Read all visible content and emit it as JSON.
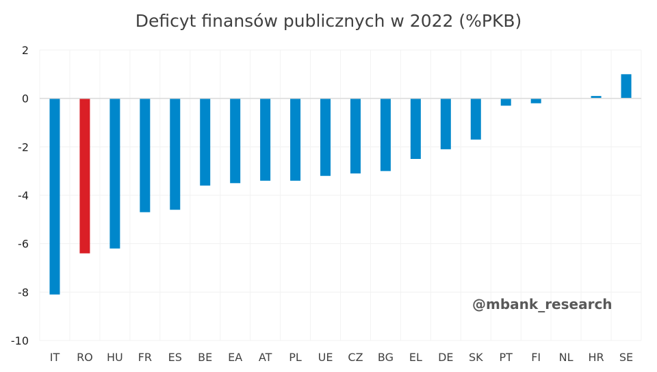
{
  "chart_data": {
    "type": "bar",
    "title": "Deficyt finansów publicznych w 2022 (%PKB)",
    "xlabel": "",
    "ylabel": "",
    "ylim": [
      -10,
      2
    ],
    "yticks": [
      2,
      0,
      -2,
      -4,
      -6,
      -8,
      -10
    ],
    "grid": true,
    "legend": "none",
    "categories": [
      "IT",
      "RO",
      "HU",
      "FR",
      "ES",
      "BE",
      "EA",
      "AT",
      "PL",
      "UE",
      "CZ",
      "BG",
      "EL",
      "DE",
      "SK",
      "PT",
      "FI",
      "NL",
      "HR",
      "SE"
    ],
    "values": [
      -8.1,
      -6.4,
      -6.2,
      -4.7,
      -4.6,
      -3.6,
      -3.5,
      -3.4,
      -3.4,
      -3.2,
      -3.1,
      -3.0,
      -2.5,
      -2.1,
      -1.7,
      -0.3,
      -0.2,
      0.0,
      0.1,
      1.0
    ],
    "highlight": {
      "category": "RO",
      "color": "#DA1F26"
    },
    "bar_color": "#0087CB",
    "annotation": "@mbank_research"
  }
}
